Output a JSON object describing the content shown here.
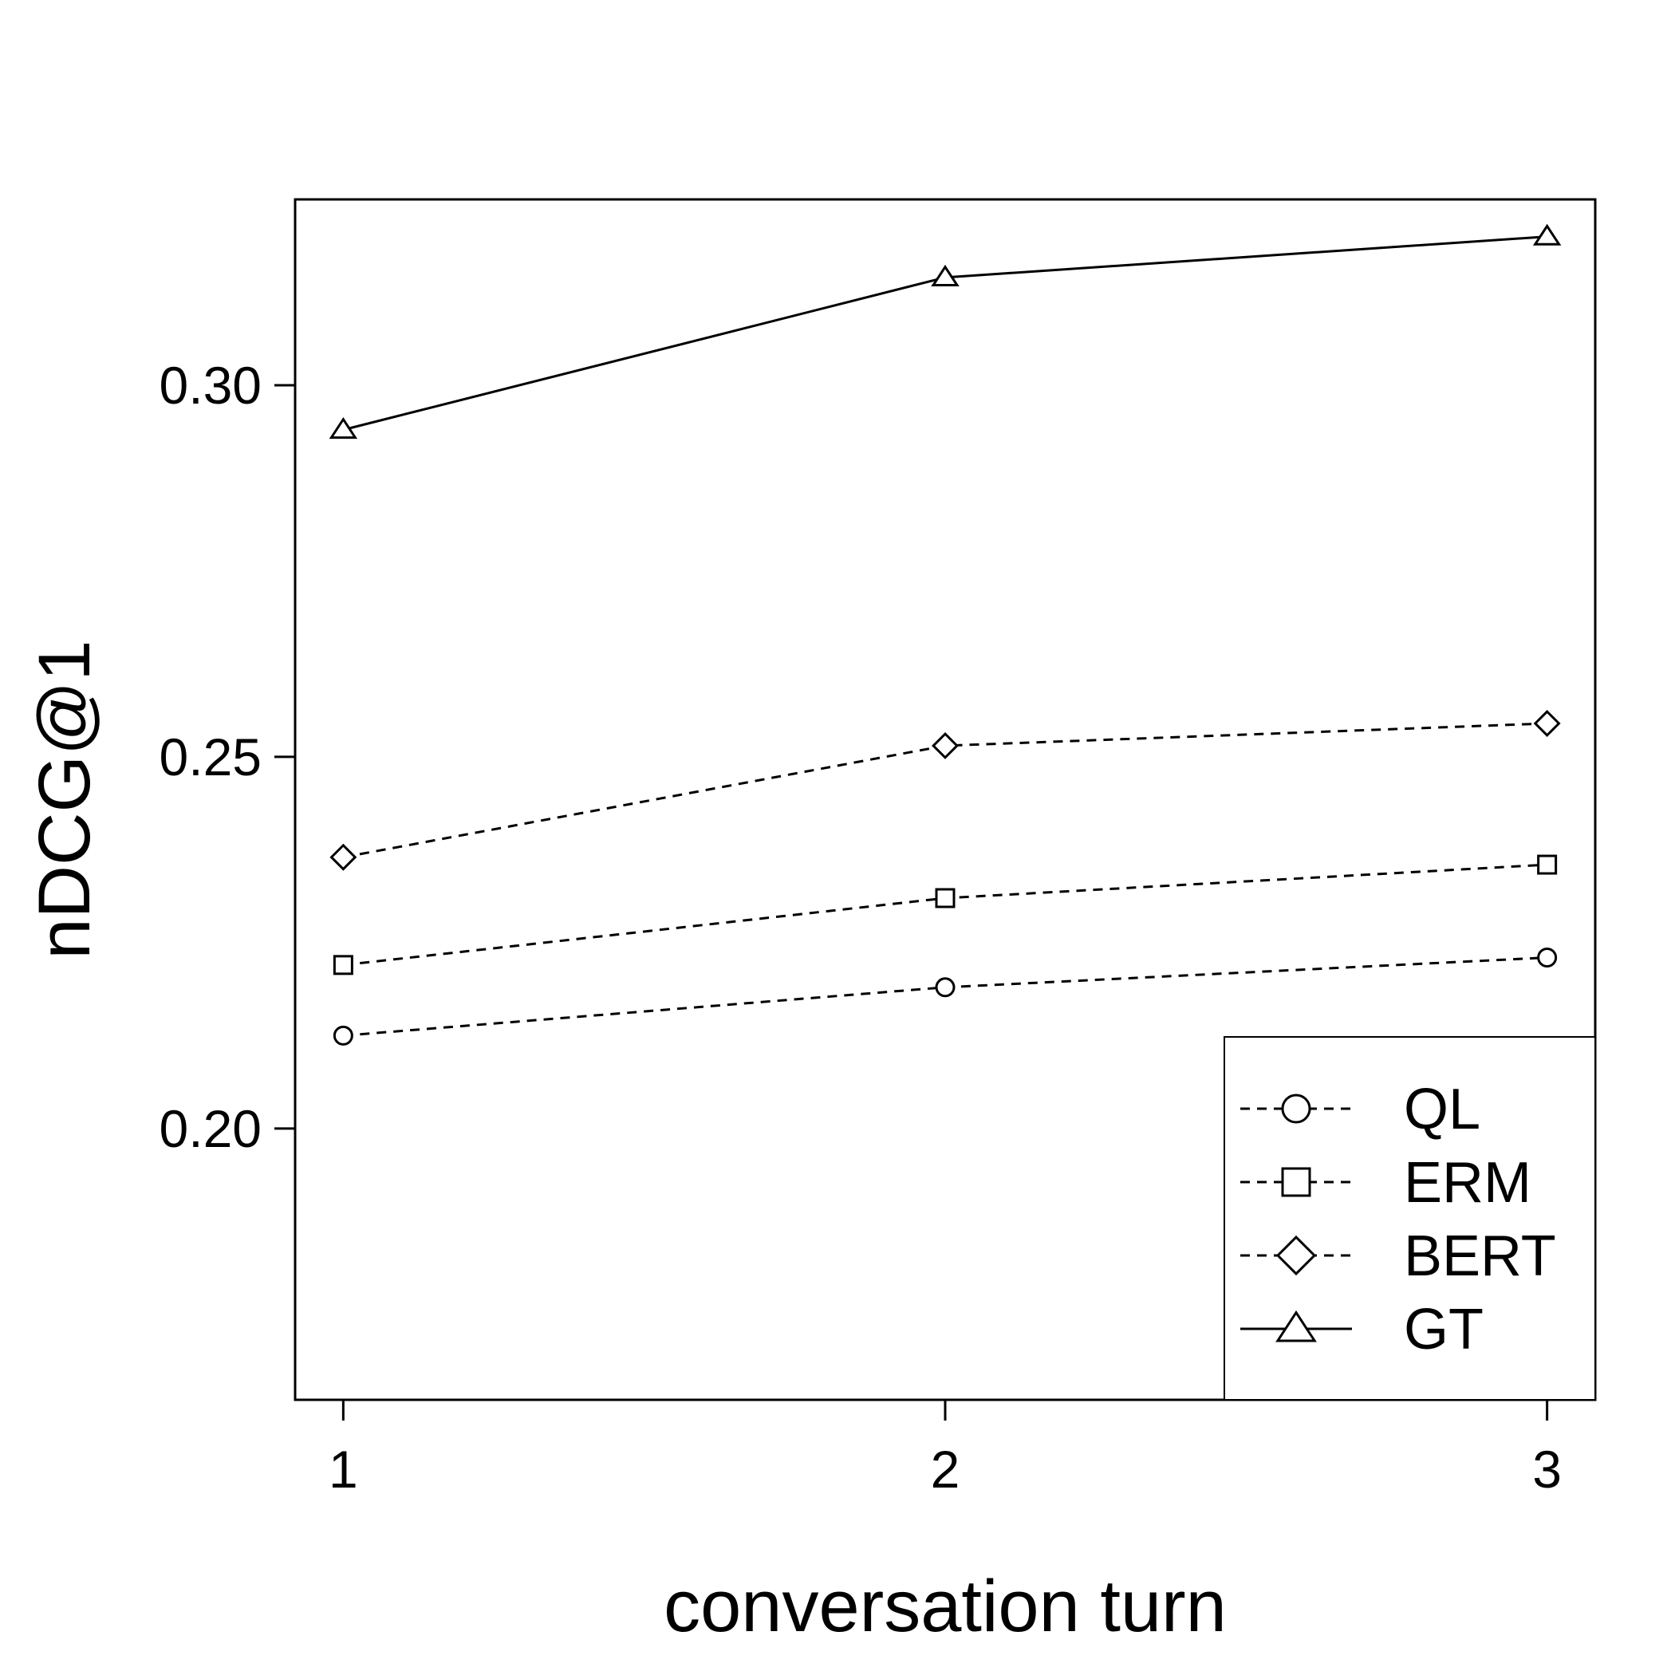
{
  "chart_data": {
    "type": "line",
    "xlabel": "conversation turn",
    "ylabel": "nDCG@1",
    "x": [
      1,
      2,
      3
    ],
    "x_tick_labels": [
      "1",
      "2",
      "3"
    ],
    "xlim": [
      0.92,
      3.08
    ],
    "ylim": [
      0.1635,
      0.325
    ],
    "y_ticks": [
      0.2,
      0.25,
      0.3
    ],
    "y_tick_labels": [
      "0.20",
      "0.25",
      "0.30"
    ],
    "grid": false,
    "legend_position": "bottom-right",
    "colors": {
      "line": "#000000",
      "background": "#ffffff"
    },
    "series": [
      {
        "name": "QL",
        "marker": "circle",
        "dash": "dashed",
        "values": [
          0.2125,
          0.219,
          0.223
        ]
      },
      {
        "name": "ERM",
        "marker": "square",
        "dash": "dashed",
        "values": [
          0.222,
          0.231,
          0.2355
        ]
      },
      {
        "name": "BERT",
        "marker": "diamond",
        "dash": "dashed",
        "values": [
          0.2365,
          0.2515,
          0.2545
        ]
      },
      {
        "name": "GT",
        "marker": "triangle",
        "dash": "solid",
        "values": [
          0.294,
          0.3145,
          0.32
        ]
      }
    ]
  }
}
